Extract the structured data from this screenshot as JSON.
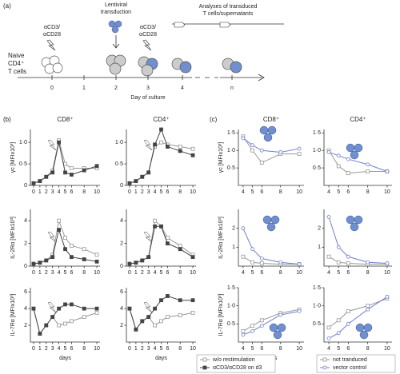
{
  "diagram": {
    "label": "(a)",
    "naive": [
      "Naive",
      "CD4⁺",
      "T cells"
    ],
    "stim1": [
      "αCD3/",
      "αCD28"
    ],
    "transduction": [
      "Lentiviral",
      "transduction"
    ],
    "stim2": [
      "αCD3/",
      "αCD28"
    ],
    "analyses": [
      "Analyses of transduced",
      "T cells/supernatants"
    ],
    "days": [
      "0",
      "1",
      "2",
      "3",
      "4",
      "n"
    ],
    "axis_label": "Day of culture"
  },
  "panel_labels": [
    "(b)",
    "(c)"
  ],
  "legend_b": [
    {
      "name": "w/o restimulation",
      "color": "#999999",
      "marker": "open-square"
    },
    {
      "name": "αCD3/αCD28 on d3",
      "color": "#444444",
      "marker": "filled-square"
    }
  ],
  "legend_c": [
    {
      "name": "not tranduced",
      "color": "#999999",
      "marker": "open-square"
    },
    {
      "name": "vector control",
      "color": "#6f7fcf",
      "marker": "open-circle"
    }
  ],
  "chart_data": [
    {
      "type": "line",
      "title": "CD8⁺",
      "ylabel": "γc [MFIx10³]",
      "x": [
        0,
        1,
        2,
        3,
        4,
        5,
        6,
        8,
        10
      ],
      "xlim": [
        -0.5,
        10.5
      ],
      "xticks": [
        0,
        1,
        2,
        3,
        4,
        5,
        6,
        8,
        10
      ],
      "ylim": [
        0,
        1.3
      ],
      "yticks": [
        0,
        {
          "value": 0.5,
          "label": "0·5"
        },
        {
          "value": 1,
          "label": "1·0"
        }
      ],
      "series": [
        {
          "color": "#999999",
          "marker": "open-square",
          "values": [
            0.05,
            0.1,
            0.2,
            0.35,
            1.05,
            0.5,
            0.4,
            0.4,
            0.4
          ]
        },
        {
          "color": "#444444",
          "marker": "filled-square",
          "values": [
            0.05,
            0.1,
            0.2,
            0.3,
            1.0,
            0.3,
            0.25,
            0.35,
            0.45
          ]
        }
      ]
    },
    {
      "type": "line",
      "title": "CD4⁺",
      "x": [
        0,
        1,
        2,
        3,
        4,
        5,
        6,
        8,
        10
      ],
      "xlim": [
        -0.5,
        10.5
      ],
      "xticks": [
        0,
        1,
        2,
        3,
        4,
        5,
        6,
        8,
        10
      ],
      "ylim": [
        0,
        1.3
      ],
      "yticks": [
        0,
        {
          "value": 0.5,
          "label": "0·5"
        },
        {
          "value": 1,
          "label": "1·0"
        }
      ],
      "series": [
        {
          "color": "#999999",
          "marker": "open-square",
          "values": [
            0.05,
            0.1,
            0.2,
            0.3,
            0.9,
            1.0,
            0.95,
            0.9,
            0.85
          ]
        },
        {
          "color": "#444444",
          "marker": "filled-square",
          "values": [
            0.05,
            0.1,
            0.2,
            0.3,
            0.95,
            1.3,
            0.9,
            0.8,
            0.7
          ]
        }
      ]
    },
    {
      "type": "line",
      "ylabel": "IL-2Rα [MFIx10³]",
      "x": [
        0,
        1,
        2,
        3,
        4,
        5,
        6,
        8,
        10
      ],
      "xlim": [
        -0.5,
        10.5
      ],
      "xticks": [
        0,
        1,
        2,
        3,
        4,
        5,
        6,
        8,
        10
      ],
      "ylim": [
        0,
        5
      ],
      "yticks": [
        0,
        2,
        4
      ],
      "series": [
        {
          "color": "#999999",
          "marker": "open-square",
          "values": [
            0.2,
            0.3,
            0.5,
            1.0,
            4.0,
            2.5,
            1.8,
            1.5,
            1.0
          ]
        },
        {
          "color": "#444444",
          "marker": "filled-square",
          "values": [
            0.2,
            0.3,
            0.5,
            0.8,
            3.2,
            1.5,
            0.8,
            0.6,
            0.4
          ]
        }
      ]
    },
    {
      "type": "line",
      "x": [
        0,
        1,
        2,
        3,
        4,
        5,
        6,
        8,
        10
      ],
      "xlim": [
        -0.5,
        10.5
      ],
      "xticks": [
        0,
        1,
        2,
        3,
        4,
        5,
        6,
        8,
        10
      ],
      "ylim": [
        0,
        5
      ],
      "yticks": [
        0,
        2,
        4
      ],
      "series": [
        {
          "color": "#999999",
          "marker": "open-square",
          "values": [
            0.2,
            0.3,
            0.5,
            0.8,
            4.0,
            3.5,
            2.5,
            1.8,
            1.0
          ]
        },
        {
          "color": "#444444",
          "marker": "filled-square",
          "values": [
            0.2,
            0.3,
            0.5,
            0.8,
            3.5,
            3.5,
            2.0,
            1.5,
            0.8
          ]
        }
      ]
    },
    {
      "type": "line",
      "ylabel": "IL-7Rα [MFIx10³]",
      "xlabel": "days",
      "x": [
        0,
        1,
        2,
        3,
        4,
        5,
        6,
        8,
        10
      ],
      "xlim": [
        -0.5,
        10.5
      ],
      "xticks": [
        0,
        1,
        2,
        3,
        4,
        5,
        6,
        8,
        10
      ],
      "ylim": [
        0,
        6.5
      ],
      "yticks": [
        2,
        4,
        6
      ],
      "series": [
        {
          "color": "#999999",
          "marker": "open-square",
          "values": [
            4,
            1,
            2,
            3,
            2,
            2.2,
            2.5,
            3,
            3.5
          ]
        },
        {
          "color": "#444444",
          "marker": "filled-square",
          "values": [
            4,
            1,
            2,
            3,
            4,
            4.5,
            4.5,
            4,
            4
          ]
        }
      ]
    },
    {
      "type": "line",
      "xlabel": "days",
      "x": [
        0,
        1,
        2,
        3,
        4,
        5,
        6,
        8,
        10
      ],
      "xlim": [
        -0.5,
        10.5
      ],
      "xticks": [
        0,
        1,
        2,
        3,
        4,
        5,
        6,
        8,
        10
      ],
      "ylim": [
        0,
        6.5
      ],
      "yticks": [
        2,
        4,
        6
      ],
      "series": [
        {
          "color": "#999999",
          "marker": "open-square",
          "values": [
            4,
            1.5,
            2.5,
            3,
            2,
            2.5,
            3,
            3.2,
            3.5
          ]
        },
        {
          "color": "#444444",
          "marker": "filled-square",
          "values": [
            4,
            1.5,
            2.5,
            3,
            4,
            5,
            5.5,
            5,
            5
          ]
        }
      ]
    },
    {
      "type": "line",
      "title": "CD8⁺",
      "ylabel": "γc [MFIx10³]",
      "x": [
        4,
        5,
        6,
        8,
        10
      ],
      "xlim": [
        3.5,
        10.5
      ],
      "xticks": [
        4,
        5,
        6,
        8,
        10
      ],
      "ylim": [
        0,
        1.6
      ],
      "yticks": [
        {
          "value": 0.5,
          "label": "0·5"
        },
        {
          "value": 1,
          "label": "1·0"
        },
        {
          "value": 1.5,
          "label": "1·5"
        }
      ],
      "series": [
        {
          "color": "#999999",
          "marker": "open-square",
          "values": [
            1.4,
            1.0,
            0.65,
            0.9,
            0.9
          ]
        },
        {
          "color": "#6f7fcf",
          "marker": "open-circle",
          "values": [
            1.35,
            1.15,
            1.0,
            0.95,
            1.05
          ]
        }
      ]
    },
    {
      "type": "line",
      "title": "CD4⁺",
      "x": [
        4,
        5,
        6,
        8,
        10
      ],
      "xlim": [
        3.5,
        10.5
      ],
      "xticks": [
        4,
        5,
        6,
        8,
        10
      ],
      "ylim": [
        0,
        1.6
      ],
      "yticks": [
        {
          "value": 0.5,
          "label": "0·5"
        },
        {
          "value": 1,
          "label": "1·0"
        },
        {
          "value": 1.5,
          "label": "1·5"
        }
      ],
      "series": [
        {
          "color": "#999999",
          "marker": "open-square",
          "values": [
            1.0,
            0.55,
            0.35,
            0.4,
            0.4
          ]
        },
        {
          "color": "#6f7fcf",
          "marker": "open-circle",
          "values": [
            0.95,
            0.85,
            0.75,
            0.6,
            0.4
          ]
        }
      ]
    },
    {
      "type": "line",
      "ylabel": "IL-2Rα [MFIx10³]",
      "x": [
        4,
        5,
        6,
        8,
        10
      ],
      "xlim": [
        3.5,
        10.5
      ],
      "xticks": [
        4,
        5,
        6,
        8,
        10
      ],
      "ylim": [
        0,
        3
      ],
      "yticks": [
        1,
        2
      ],
      "series": [
        {
          "color": "#999999",
          "marker": "open-square",
          "values": [
            0.5,
            0.2,
            0.15,
            0.1,
            0.1
          ]
        },
        {
          "color": "#6f7fcf",
          "marker": "open-circle",
          "values": [
            2.0,
            0.9,
            0.4,
            0.2,
            0.1
          ]
        }
      ]
    },
    {
      "type": "line",
      "x": [
        4,
        5,
        6,
        8,
        10
      ],
      "xlim": [
        3.5,
        10.5
      ],
      "xticks": [
        4,
        5,
        6,
        8,
        10
      ],
      "ylim": [
        0,
        3
      ],
      "yticks": [
        1,
        2
      ],
      "series": [
        {
          "color": "#999999",
          "marker": "open-square",
          "values": [
            0.5,
            0.2,
            0.15,
            0.1,
            0.1
          ]
        },
        {
          "color": "#6f7fcf",
          "marker": "open-circle",
          "values": [
            2.6,
            1.0,
            0.5,
            0.2,
            0.15
          ]
        }
      ]
    },
    {
      "type": "line",
      "ylabel": "IL-7Rα [MFIx10³]",
      "xlabel": "days",
      "x": [
        4,
        5,
        6,
        8,
        10
      ],
      "xlim": [
        3.5,
        10.5
      ],
      "xticks": [
        4,
        5,
        6,
        8,
        10
      ],
      "ylim": [
        0,
        1.5
      ],
      "yticks": [
        {
          "value": 0.5,
          "label": "0·5"
        },
        {
          "value": 1,
          "label": "1·0"
        },
        {
          "value": 1.5,
          "label": "1·5"
        }
      ],
      "series": [
        {
          "color": "#999999",
          "marker": "open-square",
          "values": [
            0.3,
            0.45,
            0.6,
            0.8,
            0.9
          ]
        },
        {
          "color": "#6f7fcf",
          "marker": "open-circle",
          "values": [
            0.2,
            0.3,
            0.45,
            0.75,
            0.85
          ]
        }
      ]
    },
    {
      "type": "line",
      "xlabel": "days",
      "x": [
        4,
        5,
        6,
        8,
        10
      ],
      "xlim": [
        3.5,
        10.5
      ],
      "xticks": [
        4,
        5,
        6,
        8,
        10
      ],
      "ylim": [
        0,
        1.5
      ],
      "yticks": [
        {
          "value": 0.5,
          "label": "0·5"
        },
        {
          "value": 1,
          "label": "1·0"
        },
        {
          "value": 1.5,
          "label": "1·5"
        }
      ],
      "series": [
        {
          "color": "#999999",
          "marker": "open-square",
          "values": [
            0.4,
            0.6,
            0.85,
            1.0,
            1.2
          ]
        },
        {
          "color": "#6f7fcf",
          "marker": "open-circle",
          "values": [
            0.1,
            0.25,
            0.5,
            0.9,
            1.25
          ]
        }
      ]
    }
  ]
}
